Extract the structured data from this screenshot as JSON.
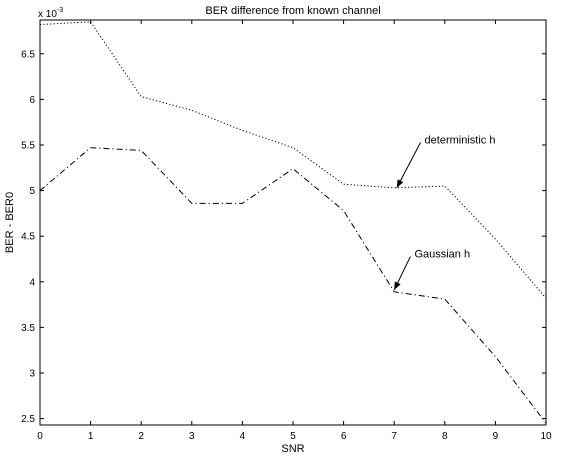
{
  "chart_data": {
    "type": "line",
    "title": "BER difference from known channel",
    "xlabel": "SNR",
    "ylabel": "BER - BER0",
    "y_exponent_label": "x 10",
    "y_exponent_power": "-3",
    "xlim": [
      0,
      10
    ],
    "ylim": [
      2.43,
      6.87
    ],
    "x_ticks": [
      0,
      1,
      2,
      3,
      4,
      5,
      6,
      7,
      8,
      9,
      10
    ],
    "y_ticks": [
      2.5,
      3,
      3.5,
      4,
      4.5,
      5,
      5.5,
      6,
      6.5
    ],
    "grid": false,
    "x": [
      0,
      1,
      2,
      3,
      4,
      5,
      6,
      7,
      8,
      9,
      10
    ],
    "series": [
      {
        "values": [
          6.82,
          6.85,
          6.03,
          5.88,
          5.66,
          5.47,
          5.07,
          5.03,
          5.05,
          4.47,
          3.82
        ],
        "style": "dotted",
        "color": "#000000"
      },
      {
        "values": [
          5.0,
          5.47,
          5.44,
          4.86,
          4.86,
          5.24,
          4.78,
          3.89,
          3.81,
          3.18,
          2.45
        ],
        "style": "dashdot",
        "color": "#000000"
      }
    ],
    "annotations": [
      {
        "text": "deterministic h",
        "point": [
          7.05,
          5.03
        ],
        "label_at": [
          7.6,
          5.55
        ]
      },
      {
        "text": "Gaussian h",
        "point": [
          7.0,
          3.91
        ],
        "label_at": [
          7.4,
          4.3
        ]
      }
    ]
  }
}
